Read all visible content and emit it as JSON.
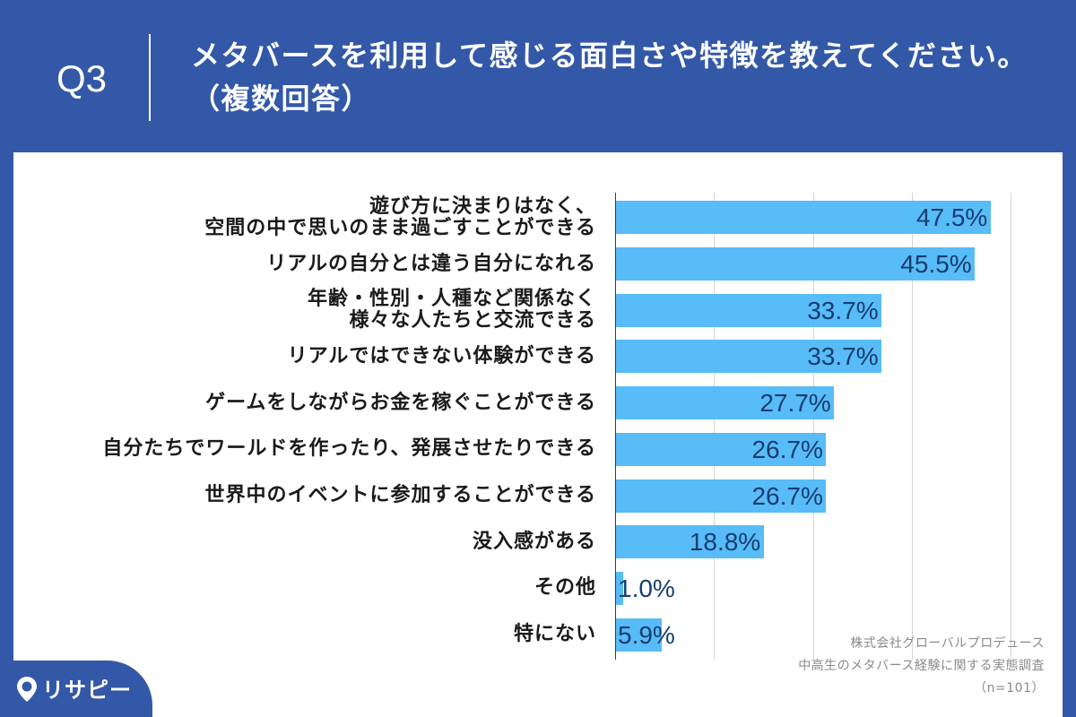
{
  "header": {
    "question_number": "Q3"
  },
  "chart_data": {
    "type": "bar",
    "orientation": "horizontal",
    "title": "メタバースを利用して感じる面白さや特徴を教えてください。",
    "subtitle": "（複数回答）",
    "categories": [
      "遊び方に決まりはなく、\n空間の中で思いのまま過ごすことができる",
      "リアルの自分とは違う自分になれる",
      "年齢・性別・人種など関係なく\n様々な人たちと交流できる",
      "リアルではできない体験ができる",
      "ゲームをしながらお金を稼ぐことができる",
      "自分たちでワールドを作ったり、発展させたりできる",
      "世界中のイベントに参加することができる",
      "没入感がある",
      "その他",
      "特にない"
    ],
    "values": [
      47.5,
      45.5,
      33.7,
      33.7,
      27.7,
      26.7,
      26.7,
      18.8,
      1.0,
      5.9
    ],
    "data_labels": [
      "47.5%",
      "45.5%",
      "33.7%",
      "33.7%",
      "27.7%",
      "26.7%",
      "26.7%",
      "18.8%",
      "1.0%",
      "5.9%"
    ],
    "xlim": [
      0,
      50
    ],
    "grid": true,
    "bar_color": "#57bcf7",
    "label_color": "#183c70"
  },
  "source": {
    "company": "株式会社グローバルプロデュース",
    "survey": "中高生のメタバース経験に関する実態調査",
    "sample_size": "（n=101）"
  },
  "brand": {
    "logo_text": "リサピー",
    "icon": "pin-icon"
  },
  "colors": {
    "background": "#3358a8",
    "panel": "#ffffff"
  }
}
